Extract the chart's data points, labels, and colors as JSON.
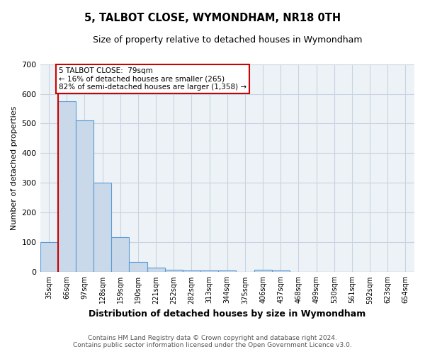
{
  "title": "5, TALBOT CLOSE, WYMONDHAM, NR18 0TH",
  "subtitle": "Size of property relative to detached houses in Wymondham",
  "xlabel": "Distribution of detached houses by size in Wymondham",
  "ylabel": "Number of detached properties",
  "categories": [
    "35sqm",
    "66sqm",
    "97sqm",
    "128sqm",
    "159sqm",
    "190sqm",
    "221sqm",
    "252sqm",
    "282sqm",
    "313sqm",
    "344sqm",
    "375sqm",
    "406sqm",
    "437sqm",
    "468sqm",
    "499sqm",
    "530sqm",
    "561sqm",
    "592sqm",
    "623sqm",
    "654sqm"
  ],
  "values": [
    100,
    575,
    510,
    300,
    118,
    35,
    16,
    8,
    6,
    5,
    5,
    0,
    7,
    5,
    0,
    0,
    0,
    0,
    0,
    0,
    0
  ],
  "bar_color": "#c9d9ea",
  "bar_edge_color": "#5b9bd5",
  "grid_color": "#c8d4e0",
  "background_color": "#edf2f7",
  "vline_x": 0.5,
  "vline_color": "#cc0000",
  "annotation_text": "5 TALBOT CLOSE:  79sqm\n← 16% of detached houses are smaller (265)\n82% of semi-detached houses are larger (1,358) →",
  "annotation_box_color": "#ffffff",
  "annotation_box_edge": "#cc0000",
  "ylim": [
    0,
    700
  ],
  "yticks": [
    0,
    100,
    200,
    300,
    400,
    500,
    600,
    700
  ],
  "footer_line1": "Contains HM Land Registry data © Crown copyright and database right 2024.",
  "footer_line2": "Contains public sector information licensed under the Open Government Licence v3.0."
}
